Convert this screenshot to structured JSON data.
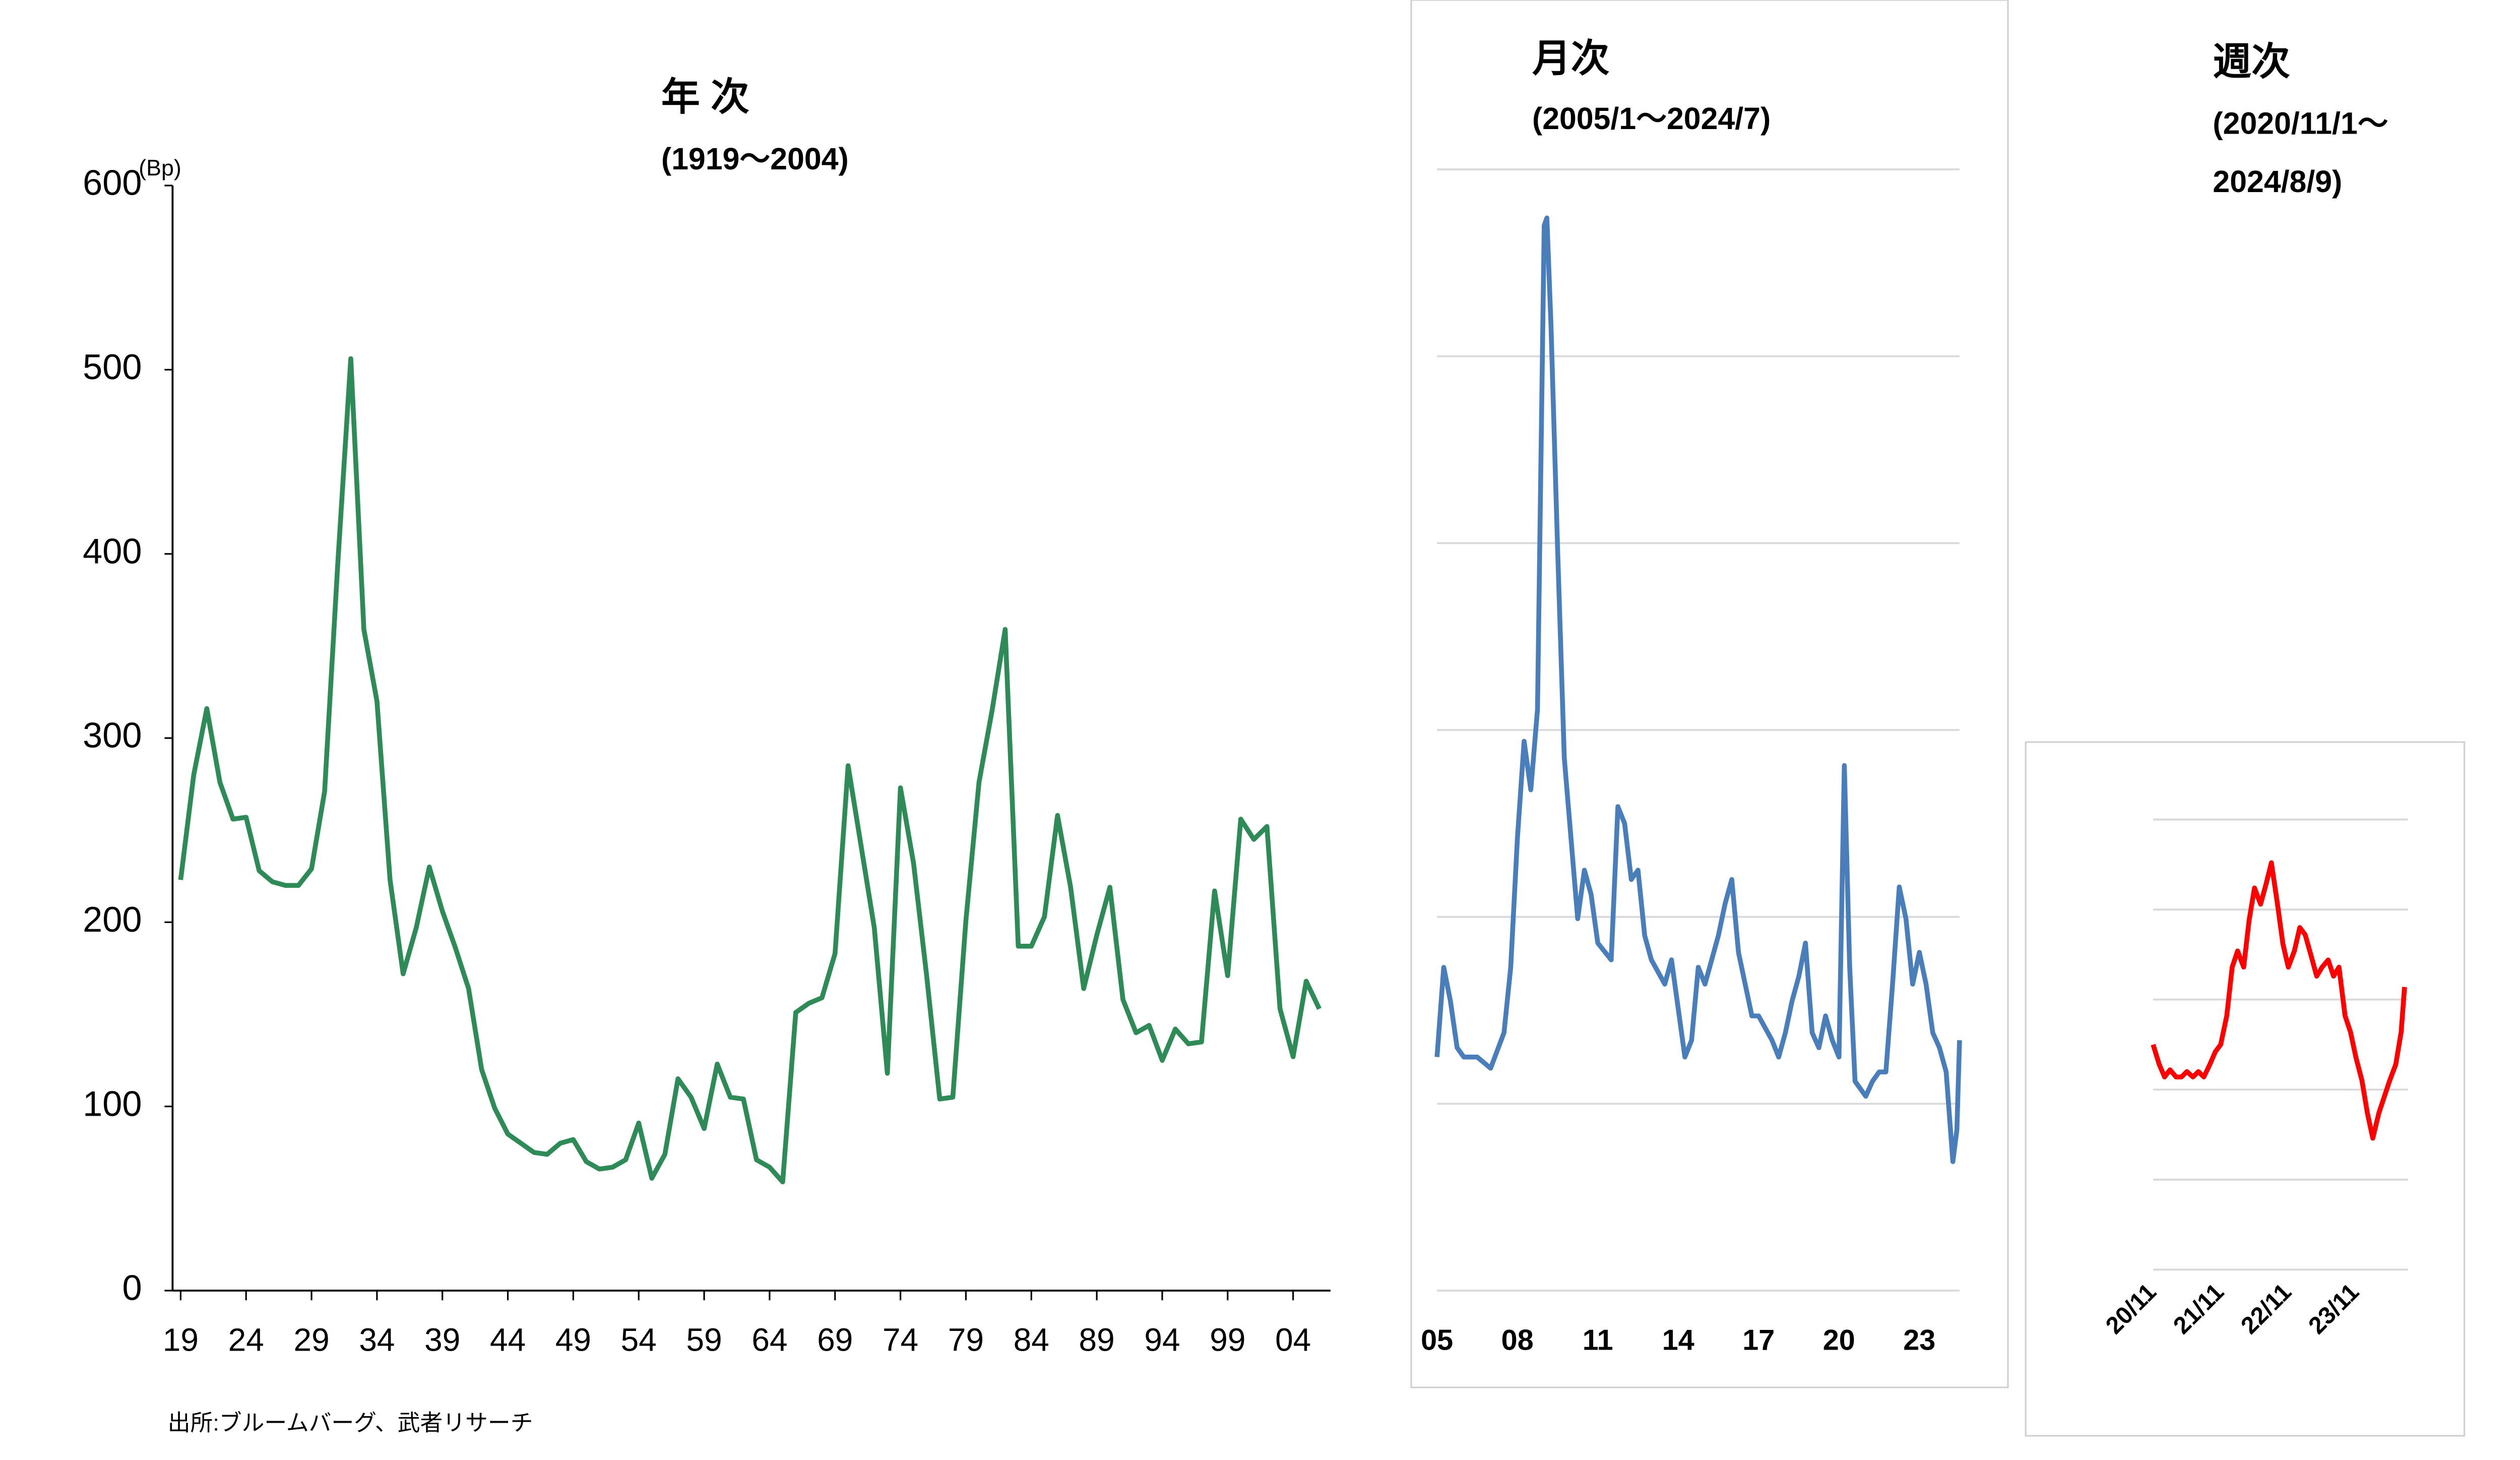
{
  "source": "出所:ブルームバーグ、武者リサーチ",
  "chart_data": [
    {
      "type": "line",
      "title": "年 次",
      "subtitle": [
        "(1919～2004)"
      ],
      "y_unit": "(Bp)",
      "axes": true,
      "show_ytick_labels": true,
      "grid": false,
      "x": [
        1919,
        1920,
        1921,
        1922,
        1923,
        1924,
        1925,
        1926,
        1927,
        1928,
        1929,
        1930,
        1931,
        1932,
        1933,
        1934,
        1935,
        1936,
        1937,
        1938,
        1939,
        1940,
        1941,
        1942,
        1943,
        1944,
        1945,
        1946,
        1947,
        1948,
        1949,
        1950,
        1951,
        1952,
        1953,
        1954,
        1955,
        1956,
        1957,
        1958,
        1959,
        1960,
        1961,
        1962,
        1963,
        1964,
        1965,
        1966,
        1967,
        1968,
        1969,
        1970,
        1971,
        1972,
        1973,
        1974,
        1975,
        1976,
        1977,
        1978,
        1979,
        1980,
        1981,
        1982,
        1983,
        1984,
        1985,
        1986,
        1987,
        1988,
        1989,
        1990,
        1991,
        1992,
        1993,
        1994,
        1995,
        1996,
        1997,
        1998,
        1999,
        2000,
        2001,
        2002,
        2003,
        2004,
        2005,
        2006
      ],
      "series": [
        {
          "color": "#2e8b57",
          "values": [
            223,
            280,
            316,
            276,
            256,
            257,
            228,
            222,
            220,
            220,
            229,
            271,
            394,
            506,
            359,
            320,
            223,
            172,
            197,
            230,
            206,
            186,
            164,
            120,
            99,
            85,
            80,
            75,
            74,
            80,
            82,
            70,
            66,
            67,
            71,
            91,
            61,
            74,
            115,
            105,
            88,
            123,
            105,
            104,
            71,
            67,
            59,
            151,
            156,
            159,
            183,
            285,
            241,
            197,
            118,
            273,
            232,
            171,
            104,
            105,
            201,
            276,
            315,
            359,
            187,
            187,
            203,
            258,
            219,
            164,
            193,
            219,
            158,
            140,
            144,
            125,
            142,
            134,
            135,
            217,
            171,
            256,
            245,
            252,
            153,
            127,
            168,
            153
          ]
        }
      ],
      "xlim": [
        1919,
        2006
      ],
      "ylim": [
        0,
        600
      ],
      "yticks": [
        0,
        100,
        200,
        300,
        400,
        500,
        600
      ],
      "xticks": [
        {
          "value": 1919,
          "label": "19"
        },
        {
          "value": 1924,
          "label": "24"
        },
        {
          "value": 1929,
          "label": "29"
        },
        {
          "value": 1934,
          "label": "34"
        },
        {
          "value": 1939,
          "label": "39"
        },
        {
          "value": 1944,
          "label": "44"
        },
        {
          "value": 1949,
          "label": "49"
        },
        {
          "value": 1954,
          "label": "54"
        },
        {
          "value": 1959,
          "label": "59"
        },
        {
          "value": 1964,
          "label": "64"
        },
        {
          "value": 1969,
          "label": "69"
        },
        {
          "value": 1974,
          "label": "74"
        },
        {
          "value": 1979,
          "label": "79"
        },
        {
          "value": 1984,
          "label": "84"
        },
        {
          "value": 1989,
          "label": "89"
        },
        {
          "value": 1994,
          "label": "94"
        },
        {
          "value": 1999,
          "label": "99"
        },
        {
          "value": 2004,
          "label": "04"
        }
      ]
    },
    {
      "type": "line",
      "title": "月次",
      "subtitle": [
        "(2005/1～2024/7)"
      ],
      "axes": false,
      "show_ytick_labels": false,
      "grid": true,
      "x": [
        2005,
        2005.25,
        2005.5,
        2005.75,
        2006,
        2006.5,
        2007,
        2007.5,
        2007.75,
        2008,
        2008.25,
        2008.5,
        2008.75,
        2009,
        2009.1,
        2009.25,
        2009.5,
        2009.75,
        2010,
        2010.25,
        2010.5,
        2010.75,
        2011,
        2011.5,
        2011.75,
        2012,
        2012.25,
        2012.5,
        2012.75,
        2013,
        2013.5,
        2013.75,
        2014,
        2014.25,
        2014.5,
        2014.75,
        2015,
        2015.5,
        2015.75,
        2016,
        2016.25,
        2016.5,
        2016.75,
        2017,
        2017.5,
        2017.75,
        2018,
        2018.25,
        2018.5,
        2018.75,
        2019,
        2019.25,
        2019.5,
        2019.75,
        2020,
        2020.2,
        2020.4,
        2020.6,
        2020.8,
        2021,
        2021.25,
        2021.5,
        2021.75,
        2022,
        2022.25,
        2022.5,
        2022.75,
        2023,
        2023.25,
        2023.5,
        2023.75,
        2024,
        2024.25,
        2024.4,
        2024.5
      ],
      "series": [
        {
          "color": "#4a7ebb",
          "values": [
            125,
            173,
            155,
            130,
            125,
            125,
            119,
            138,
            173,
            242,
            294,
            268,
            311,
            570,
            574,
            518,
            397,
            285,
            242,
            199,
            225,
            212,
            186,
            177,
            259,
            250,
            220,
            225,
            190,
            177,
            164,
            177,
            151,
            125,
            134,
            173,
            164,
            190,
            207,
            220,
            181,
            164,
            147,
            147,
            134,
            125,
            138,
            155,
            168,
            186,
            138,
            130,
            147,
            134,
            125,
            281,
            173,
            112,
            108,
            104,
            112,
            117,
            117,
            164,
            216,
            199,
            164,
            181,
            164,
            138,
            130,
            117,
            69,
            86,
            134
          ]
        }
      ],
      "xlim": [
        2005,
        2024.5
      ],
      "ylim": [
        0,
        600
      ],
      "yticks": [
        0,
        100,
        200,
        300,
        400,
        500,
        600
      ],
      "xticks": [
        {
          "value": 2005,
          "label": "05"
        },
        {
          "value": 2008,
          "label": "08"
        },
        {
          "value": 2011,
          "label": "11"
        },
        {
          "value": 2014,
          "label": "14"
        },
        {
          "value": 2017,
          "label": "17"
        },
        {
          "value": 2020,
          "label": "20"
        },
        {
          "value": 2023,
          "label": "23"
        }
      ]
    },
    {
      "type": "line",
      "title": "週次",
      "subtitle": [
        "(2020/11/1～",
        "2024/8/9)"
      ],
      "axes": false,
      "show_ytick_labels": false,
      "grid": true,
      "x": [
        2020.83,
        2020.92,
        2021,
        2021.08,
        2021.17,
        2021.25,
        2021.33,
        2021.42,
        2021.5,
        2021.58,
        2021.67,
        2021.75,
        2021.83,
        2021.92,
        2022,
        2022.08,
        2022.17,
        2022.25,
        2022.33,
        2022.42,
        2022.5,
        2022.58,
        2022.67,
        2022.75,
        2022.83,
        2022.92,
        2023,
        2023.08,
        2023.17,
        2023.25,
        2023.33,
        2023.42,
        2023.5,
        2023.58,
        2023.67,
        2023.75,
        2023.83,
        2023.92,
        2024,
        2024.08,
        2024.17,
        2024.25,
        2024.33,
        2024.42,
        2024.5,
        2024.55
      ],
      "series": [
        {
          "color": "#ff0000",
          "values": [
            125,
            114,
            107,
            111,
            107,
            107,
            110,
            107,
            110,
            107,
            114,
            121,
            125,
            141,
            168,
            177,
            168,
            194,
            212,
            203,
            214,
            226,
            203,
            181,
            168,
            177,
            190,
            186,
            174,
            163,
            168,
            172,
            163,
            168,
            141,
            132,
            118,
            105,
            87,
            73,
            87,
            96,
            105,
            114,
            132,
            157
          ]
        }
      ],
      "xlim": [
        2020.83,
        2024.6
      ],
      "ylim": [
        0,
        250
      ],
      "yticks": [
        0,
        50,
        100,
        150,
        200,
        250
      ],
      "xticks": [
        {
          "value": 2020.83,
          "label": "20/11"
        },
        {
          "value": 2021.83,
          "label": "21/11"
        },
        {
          "value": 2022.83,
          "label": "22/11"
        },
        {
          "value": 2023.83,
          "label": "23/11"
        }
      ]
    }
  ]
}
